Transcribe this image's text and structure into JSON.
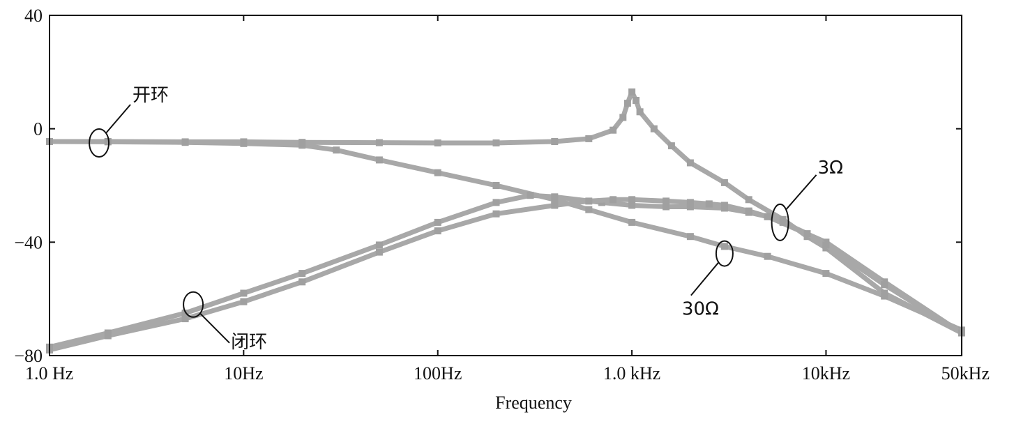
{
  "chart_data": {
    "type": "line",
    "xlabel": "Frequency",
    "ylabel": "",
    "xscale": "log",
    "xlim": [
      1,
      50000
    ],
    "ylim": [
      -80,
      40
    ],
    "x_ticks": [
      {
        "value": 1,
        "label": "1.0 Hz"
      },
      {
        "value": 10,
        "label": "10Hz"
      },
      {
        "value": 100,
        "label": "100Hz"
      },
      {
        "value": 1000,
        "label": "1.0 kHz"
      },
      {
        "value": 10000,
        "label": "10kHz"
      },
      {
        "value": 50000,
        "label": "50kHz"
      }
    ],
    "y_ticks": [
      {
        "value": 40,
        "label": "40"
      },
      {
        "value": 0,
        "label": "0"
      },
      {
        "value": -40,
        "label": "−40"
      },
      {
        "value": -80,
        "label": "−80"
      }
    ],
    "grid": false,
    "color": "#a8a8a8",
    "series": [
      {
        "x": [
          1,
          2,
          5,
          10,
          20,
          50,
          100,
          200,
          400,
          600,
          800,
          900,
          950,
          1000,
          1050,
          1100,
          1300,
          1600,
          2000,
          3000,
          4000,
          6000,
          8000,
          10000,
          20000,
          50000
        ],
        "y": [
          -4.5,
          -4.5,
          -4.6,
          -4.6,
          -4.8,
          -4.9,
          -5,
          -5,
          -4.5,
          -3.5,
          -0.5,
          4,
          9,
          13,
          10,
          6,
          0,
          -6,
          -12,
          -19,
          -25,
          -32,
          -38,
          -42,
          -58,
          -72
        ]
      },
      {
        "x": [
          1,
          2,
          5,
          10,
          20,
          30,
          50,
          100,
          200,
          400,
          600,
          1000,
          2000,
          3000,
          5000,
          10000,
          20000,
          50000
        ],
        "y": [
          -4.5,
          -4.6,
          -4.8,
          -5.2,
          -5.8,
          -7.5,
          -11,
          -15.5,
          -20,
          -25,
          -28.5,
          -33,
          -38,
          -41.5,
          -45,
          -51,
          -59,
          -71
        ]
      },
      {
        "x": [
          1,
          2,
          5,
          10,
          20,
          50,
          100,
          200,
          300,
          400,
          700,
          1000,
          1500,
          2000,
          3000,
          4000,
          5000,
          10000,
          20000,
          50000
        ],
        "y": [
          -77,
          -72,
          -65,
          -58,
          -51,
          -41,
          -33,
          -26,
          -23.5,
          -24,
          -26,
          -27,
          -27.5,
          -27.5,
          -28,
          -29.5,
          -31,
          -40,
          -54,
          -72
        ]
      },
      {
        "x": [
          1,
          2,
          5,
          10,
          20,
          50,
          100,
          200,
          400,
          600,
          800,
          1000,
          1500,
          2000,
          2500,
          3000,
          4000,
          5000,
          6000,
          8000,
          10000,
          20000,
          50000
        ],
        "y": [
          -78,
          -73,
          -67,
          -61,
          -54,
          -43.5,
          -36,
          -30,
          -27,
          -25.5,
          -25,
          -25,
          -25.5,
          -26,
          -26.5,
          -27,
          -29,
          -31,
          -33,
          -37,
          -41,
          -55,
          -72
        ]
      }
    ],
    "annotations": [
      {
        "text": "开环",
        "x": 1.8,
        "y": -5
      },
      {
        "text": "闭环",
        "x": 5.5,
        "y": -62
      },
      {
        "text": "3Ω",
        "x": 5800,
        "y": -33
      },
      {
        "text": "30Ω",
        "x": 3000,
        "y": -44
      }
    ]
  }
}
